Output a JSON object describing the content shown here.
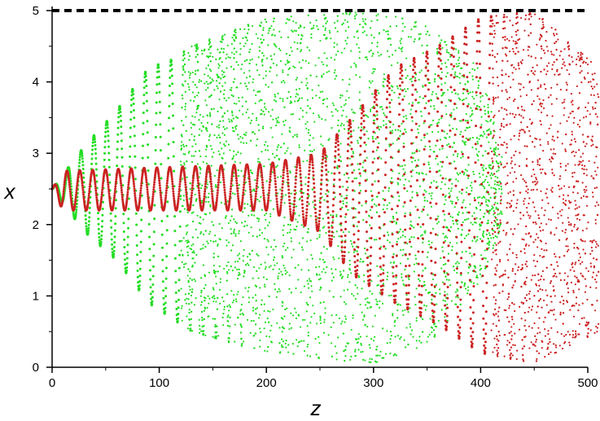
{
  "chart_data": {
    "type": "scatter",
    "title": "",
    "xlabel": "z",
    "ylabel": "x",
    "xlim": [
      0,
      500
    ],
    "ylim": [
      0,
      5
    ],
    "x_ticks": [
      "0",
      "100",
      "200",
      "300",
      "400",
      "500"
    ],
    "y_ticks": [
      "0",
      "1",
      "2",
      "3",
      "4",
      "5"
    ],
    "grid": false,
    "legend": "none",
    "reference_line": {
      "y": 5,
      "style": "dashed",
      "color": "#000000"
    },
    "series": [
      {
        "color": "#22dd22",
        "envelope": [
          [
            0,
            2.5
          ],
          [
            30,
            3.1
          ],
          [
            60,
            3.6
          ],
          [
            90,
            4.2
          ],
          [
            110,
            4.3
          ],
          [
            130,
            4.5
          ],
          [
            200,
            4.9
          ],
          [
            300,
            5.0
          ],
          [
            350,
            4.8
          ],
          [
            400,
            4.2
          ],
          [
            420,
            3.0
          ]
        ],
        "lower_envelope": [
          [
            0,
            2.5
          ],
          [
            30,
            1.9
          ],
          [
            60,
            1.5
          ],
          [
            90,
            0.9
          ],
          [
            110,
            0.7
          ],
          [
            130,
            0.5
          ],
          [
            200,
            0.2
          ],
          [
            300,
            0.05
          ],
          [
            350,
            0.3
          ],
          [
            400,
            1.2
          ],
          [
            420,
            2.0
          ]
        ],
        "oscillation_period": 12,
        "scatter_onset_z": 120
      },
      {
        "color": "#cc2222",
        "envelope": [
          [
            0,
            2.5
          ],
          [
            10,
            2.75
          ],
          [
            100,
            2.8
          ],
          [
            200,
            2.85
          ],
          [
            250,
            3.0
          ],
          [
            280,
            3.5
          ],
          [
            320,
            4.2
          ],
          [
            360,
            4.5
          ],
          [
            400,
            4.9
          ],
          [
            450,
            5.0
          ],
          [
            510,
            4.2
          ]
        ],
        "lower_envelope": [
          [
            0,
            2.5
          ],
          [
            10,
            2.2
          ],
          [
            100,
            2.2
          ],
          [
            200,
            2.2
          ],
          [
            250,
            1.9
          ],
          [
            280,
            1.3
          ],
          [
            320,
            0.9
          ],
          [
            360,
            0.6
          ],
          [
            400,
            0.2
          ],
          [
            450,
            0.05
          ],
          [
            510,
            0.5
          ]
        ],
        "oscillation_period": 12,
        "scatter_onset_z": 410
      }
    ]
  }
}
